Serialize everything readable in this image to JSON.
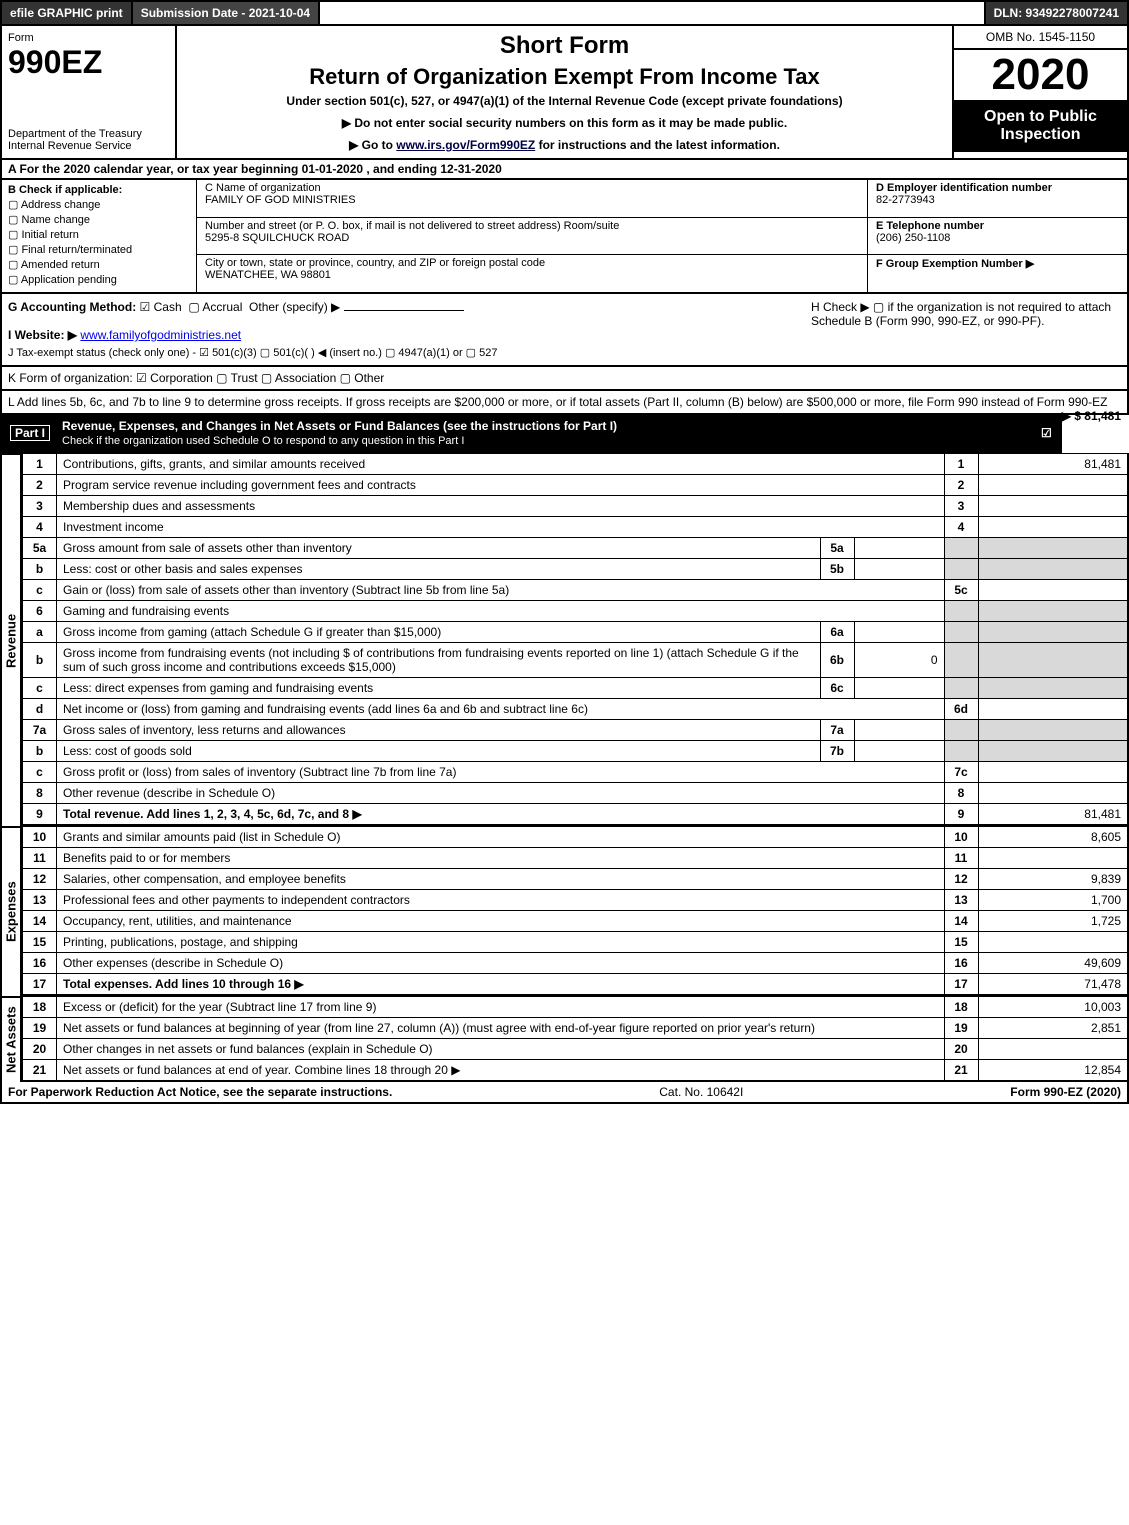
{
  "topbar": {
    "efile": "efile GRAPHIC print",
    "submission": "Submission Date - 2021-10-04",
    "dln": "DLN: 93492278007241"
  },
  "header": {
    "form_word": "Form",
    "form_number": "990EZ",
    "dept1": "Department of the Treasury",
    "dept2": "Internal Revenue Service",
    "short_form": "Short Form",
    "title": "Return of Organization Exempt From Income Tax",
    "subtitle": "Under section 501(c), 527, or 4947(a)(1) of the Internal Revenue Code (except private foundations)",
    "instr1": "▶ Do not enter social security numbers on this form as it may be made public.",
    "instr2_pre": "▶ Go to ",
    "instr2_link": "www.irs.gov/Form990EZ",
    "instr2_post": " for instructions and the latest information.",
    "omb": "OMB No. 1545-1150",
    "year": "2020",
    "open": "Open to Public Inspection"
  },
  "row_a": "A For the 2020 calendar year, or tax year beginning 01-01-2020 , and ending 12-31-2020",
  "col_b": {
    "heading": "B  Check if applicable:",
    "items": [
      "Address change",
      "Name change",
      "Initial return",
      "Final return/terminated",
      "Amended return",
      "Application pending"
    ]
  },
  "col_c": {
    "c_label": "C Name of organization",
    "c_value": "FAMILY OF GOD MINISTRIES",
    "addr_label": "Number and street (or P. O. box, if mail is not delivered to street address)     Room/suite",
    "addr_value": "5295-8 SQUILCHUCK ROAD",
    "city_label": "City or town, state or province, country, and ZIP or foreign postal code",
    "city_value": "WENATCHEE, WA  98801"
  },
  "col_def": {
    "d_label": "D Employer identification number",
    "d_value": "82-2773943",
    "e_label": "E Telephone number",
    "e_value": "(206) 250-1108",
    "f_label": "F Group Exemption Number  ▶"
  },
  "section_g": {
    "g_label": "G Accounting Method:",
    "g_cash": "Cash",
    "g_accrual": "Accrual",
    "g_other": "Other (specify) ▶",
    "h_label": "H  Check ▶  ▢  if the organization is not required to attach Schedule B (Form 990, 990-EZ, or 990-PF).",
    "i_label": "I Website: ▶",
    "i_value": "www.familyofgodministries.net",
    "j_label": "J Tax-exempt status (check only one) -  ☑ 501(c)(3)  ▢ 501(c)(  ) ◀ (insert no.)  ▢ 4947(a)(1) or  ▢ 527"
  },
  "row_k": "K Form of organization:   ☑ Corporation   ▢ Trust   ▢ Association   ▢ Other",
  "row_l": {
    "text": "L Add lines 5b, 6c, and 7b to line 9 to determine gross receipts. If gross receipts are $200,000 or more, or if total assets (Part II, column (B) below) are $500,000 or more, file Form 990 instead of Form 990-EZ",
    "amount": "▶ $ 81,481"
  },
  "part1": {
    "label": "Part I",
    "title": "Revenue, Expenses, and Changes in Net Assets or Fund Balances (see the instructions for Part I)",
    "sub": "Check if the organization used Schedule O to respond to any question in this Part I",
    "check_o": "☑"
  },
  "side_labels": {
    "revenue": "Revenue",
    "expenses": "Expenses",
    "netassets": "Net Assets"
  },
  "revenue_lines": [
    {
      "n": "1",
      "desc": "Contributions, gifts, grants, and similar amounts received",
      "idx": "1",
      "amt": "81,481"
    },
    {
      "n": "2",
      "desc": "Program service revenue including government fees and contracts",
      "idx": "2",
      "amt": ""
    },
    {
      "n": "3",
      "desc": "Membership dues and assessments",
      "idx": "3",
      "amt": ""
    },
    {
      "n": "4",
      "desc": "Investment income",
      "idx": "4",
      "amt": ""
    },
    {
      "n": "5a",
      "desc": "Gross amount from sale of assets other than inventory",
      "sub_n": "5a",
      "sub_v": "",
      "shade": true
    },
    {
      "n": "b",
      "desc": "Less: cost or other basis and sales expenses",
      "sub_n": "5b",
      "sub_v": "",
      "shade": true
    },
    {
      "n": "c",
      "desc": "Gain or (loss) from sale of assets other than inventory (Subtract line 5b from line 5a)",
      "idx": "5c",
      "amt": ""
    },
    {
      "n": "6",
      "desc": "Gaming and fundraising events",
      "noamt": true,
      "shade": true
    },
    {
      "n": "a",
      "desc": "Gross income from gaming (attach Schedule G if greater than $15,000)",
      "sub_n": "6a",
      "sub_v": "",
      "shade": true
    },
    {
      "n": "b",
      "desc": "Gross income from fundraising events (not including $                    of contributions from fundraising events reported on line 1) (attach Schedule G if the sum of such gross income and contributions exceeds $15,000)",
      "sub_n": "6b",
      "sub_v": "0",
      "shade": true
    },
    {
      "n": "c",
      "desc": "Less: direct expenses from gaming and fundraising events",
      "sub_n": "6c",
      "sub_v": "",
      "shade": true
    },
    {
      "n": "d",
      "desc": "Net income or (loss) from gaming and fundraising events (add lines 6a and 6b and subtract line 6c)",
      "idx": "6d",
      "amt": ""
    },
    {
      "n": "7a",
      "desc": "Gross sales of inventory, less returns and allowances",
      "sub_n": "7a",
      "sub_v": "",
      "shade": true
    },
    {
      "n": "b",
      "desc": "Less: cost of goods sold",
      "sub_n": "7b",
      "sub_v": "",
      "shade": true
    },
    {
      "n": "c",
      "desc": "Gross profit or (loss) from sales of inventory (Subtract line 7b from line 7a)",
      "idx": "7c",
      "amt": ""
    },
    {
      "n": "8",
      "desc": "Other revenue (describe in Schedule O)",
      "idx": "8",
      "amt": ""
    },
    {
      "n": "9",
      "desc": "Total revenue. Add lines 1, 2, 3, 4, 5c, 6d, 7c, and 8",
      "idx": "9",
      "amt": "81,481",
      "bold": true,
      "arrow": true
    }
  ],
  "expense_lines": [
    {
      "n": "10",
      "desc": "Grants and similar amounts paid (list in Schedule O)",
      "idx": "10",
      "amt": "8,605"
    },
    {
      "n": "11",
      "desc": "Benefits paid to or for members",
      "idx": "11",
      "amt": ""
    },
    {
      "n": "12",
      "desc": "Salaries, other compensation, and employee benefits",
      "idx": "12",
      "amt": "9,839"
    },
    {
      "n": "13",
      "desc": "Professional fees and other payments to independent contractors",
      "idx": "13",
      "amt": "1,700"
    },
    {
      "n": "14",
      "desc": "Occupancy, rent, utilities, and maintenance",
      "idx": "14",
      "amt": "1,725"
    },
    {
      "n": "15",
      "desc": "Printing, publications, postage, and shipping",
      "idx": "15",
      "amt": ""
    },
    {
      "n": "16",
      "desc": "Other expenses (describe in Schedule O)",
      "idx": "16",
      "amt": "49,609"
    },
    {
      "n": "17",
      "desc": "Total expenses. Add lines 10 through 16",
      "idx": "17",
      "amt": "71,478",
      "bold": true,
      "arrow": true
    }
  ],
  "netasset_lines": [
    {
      "n": "18",
      "desc": "Excess or (deficit) for the year (Subtract line 17 from line 9)",
      "idx": "18",
      "amt": "10,003"
    },
    {
      "n": "19",
      "desc": "Net assets or fund balances at beginning of year (from line 27, column (A)) (must agree with end-of-year figure reported on prior year's return)",
      "idx": "19",
      "amt": "2,851"
    },
    {
      "n": "20",
      "desc": "Other changes in net assets or fund balances (explain in Schedule O)",
      "idx": "20",
      "amt": ""
    },
    {
      "n": "21",
      "desc": "Net assets or fund balances at end of year. Combine lines 18 through 20",
      "idx": "21",
      "amt": "12,854",
      "arrow": true
    }
  ],
  "footer": {
    "left": "For Paperwork Reduction Act Notice, see the separate instructions.",
    "mid": "Cat. No. 10642I",
    "right": "Form 990-EZ (2020)"
  },
  "colors": {
    "black": "#000000",
    "darkgrey": "#333333",
    "shade": "#d9d9d9"
  }
}
